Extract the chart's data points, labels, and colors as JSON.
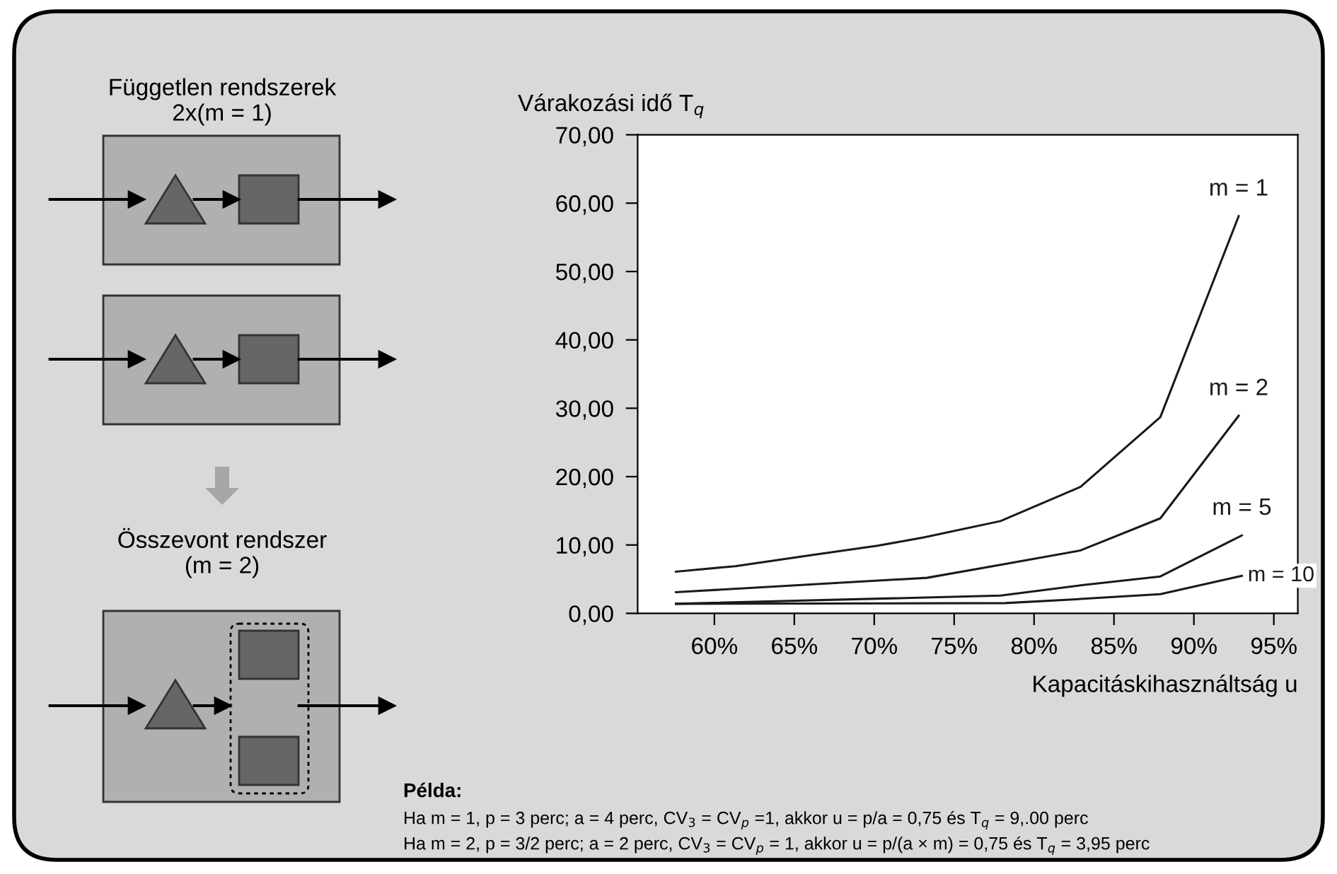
{
  "chart_data": {
    "type": "line",
    "ylabel": "Várakozási idő T$_{q}$",
    "xlabel": "Kapacitáskihasználtság u",
    "xlim": [
      55.2,
      96.5
    ],
    "ylim": [
      0,
      70
    ],
    "xticks": [
      {
        "value": 60,
        "label": "60%"
      },
      {
        "value": 65,
        "label": "65%"
      },
      {
        "value": 70,
        "label": "70%"
      },
      {
        "value": 75,
        "label": "75%"
      },
      {
        "value": 80,
        "label": "80%"
      },
      {
        "value": 85,
        "label": "85%"
      },
      {
        "value": 90,
        "label": "90%"
      },
      {
        "value": 95,
        "label": "95%"
      }
    ],
    "yticks": [
      {
        "value": 0,
        "label": "0,00"
      },
      {
        "value": 10,
        "label": "10,00"
      },
      {
        "value": 20,
        "label": "20,00"
      },
      {
        "value": 30,
        "label": "30,00"
      },
      {
        "value": 40,
        "label": "40,00"
      },
      {
        "value": 50,
        "label": "50,00"
      },
      {
        "value": 60,
        "label": "60,00"
      },
      {
        "value": 70,
        "label": "70,00"
      }
    ],
    "grid": false,
    "legend": false,
    "marker": "none",
    "line_style": "solid",
    "series": [
      {
        "name": "m = 1",
        "color": "#1a1a1a",
        "x": [
          57.6,
          61.3,
          66.0,
          70.2,
          73.1,
          77.9,
          82.9,
          87.9,
          92.8
        ],
        "values": [
          6.1,
          6.9,
          8.5,
          9.9,
          11.1,
          13.5,
          18.5,
          28.7,
          58.1
        ]
      },
      {
        "name": "m = 2",
        "color": "#1a1a1a",
        "x": [
          57.6,
          73.3,
          77.9,
          82.9,
          87.9,
          92.8
        ],
        "values": [
          3.1,
          5.2,
          7.1,
          9.2,
          13.9,
          28.9
        ]
      },
      {
        "name": "m = 5",
        "color": "#1a1a1a",
        "x": [
          57.6,
          77.9,
          82.9,
          87.9,
          93.0
        ],
        "values": [
          1.4,
          2.6,
          4.1,
          5.4,
          11.4
        ]
      },
      {
        "name": "m = 10",
        "color": "#1a1a1a",
        "x": [
          57.6,
          78.2,
          82.9,
          87.9,
          93.0
        ],
        "values": [
          1.4,
          1.5,
          2.1,
          2.8,
          5.5
        ]
      }
    ],
    "annotations": [
      "Független rendszerek\n2x(m = 1)",
      "Összevont rendszer\n(m = 2)",
      "Példa:",
      "Ha m = 1, p = 3 perc; a = 4 perc, CV$_{3}$ = CV$_{p}$ =1, akkor u = p/a = 0,75 és T$_{q}$ = 9,.00 perc",
      "Ha m = 2, p = 3/2 perc; a = 2 perc, CV$_{3}$ = CV$_{p}$ = 1, akkor u = p/(a × m) = 0,75 és T$_{q}$ = 3,95 perc"
    ]
  }
}
